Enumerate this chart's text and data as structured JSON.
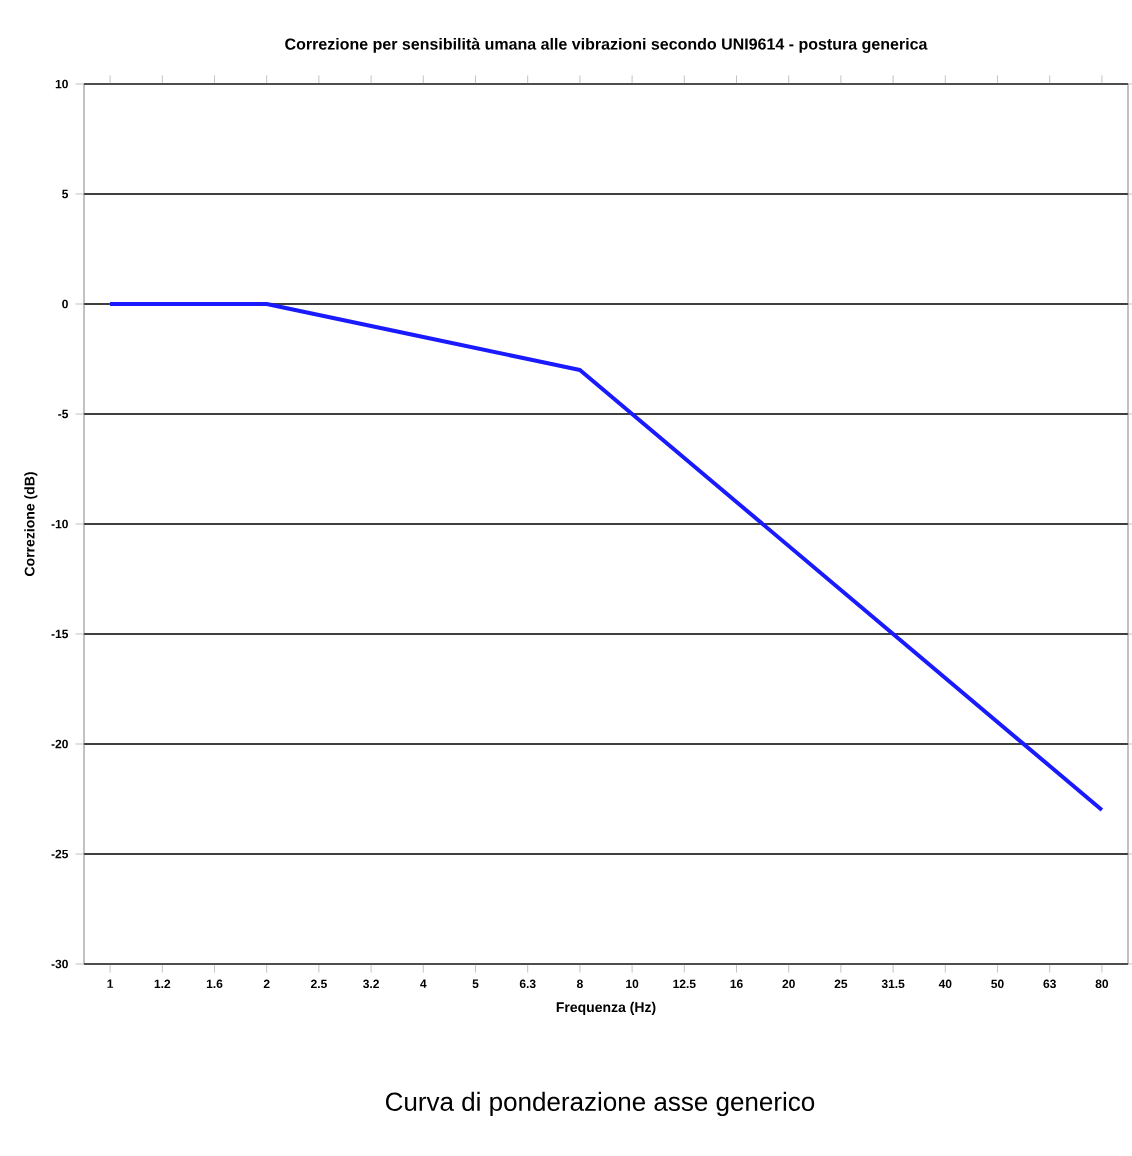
{
  "chart_data": {
    "type": "line",
    "title": "Correzione per sensibilità umana alle vibrazioni secondo UNI9614 - postura generica",
    "xlabel": "Frequenza (Hz)",
    "ylabel": "Correzione (dB)",
    "categories": [
      "1",
      "1.2",
      "1.6",
      "2",
      "2.5",
      "3.2",
      "4",
      "5",
      "6.3",
      "8",
      "10",
      "12.5",
      "16",
      "20",
      "25",
      "31.5",
      "40",
      "50",
      "63",
      "80"
    ],
    "series": [
      {
        "color": "#1a1aff",
        "values": [
          0,
          0,
          0,
          0,
          -0.5,
          -1,
          -1.5,
          -2,
          -2.5,
          -3,
          -5,
          -7,
          -9,
          -11,
          -13,
          -15,
          -17,
          -19,
          -21,
          -23
        ]
      }
    ],
    "ylim": [
      -30,
      10
    ],
    "yticks": [
      -30,
      -25,
      -20,
      -15,
      -10,
      -5,
      0,
      5,
      10
    ],
    "grid": "y",
    "marker": "none",
    "line_style": "solid",
    "annotations": [
      "Curva di ponderazione asse generico"
    ]
  }
}
